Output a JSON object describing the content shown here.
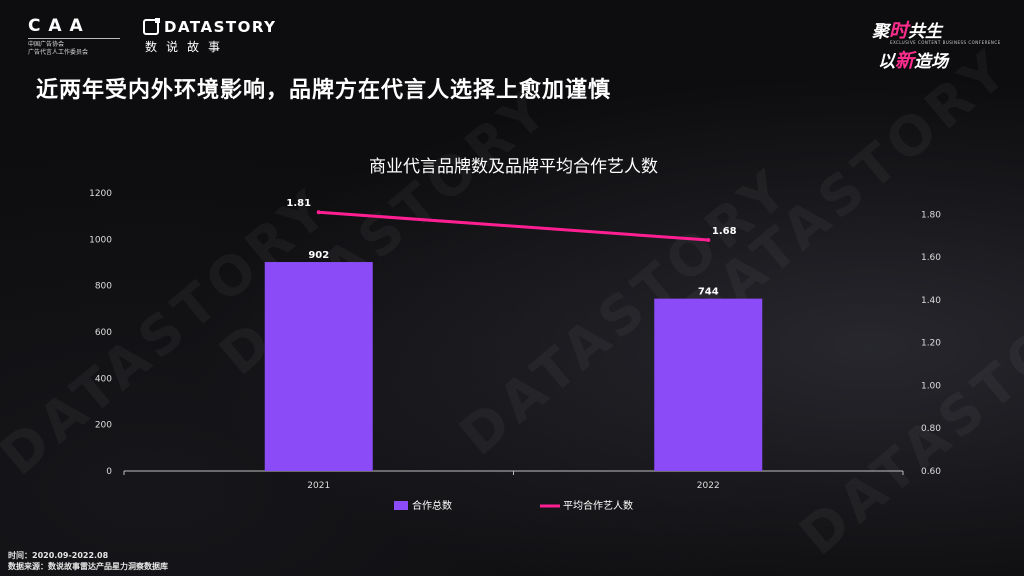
{
  "branding": {
    "caa_mark": "C A A",
    "caa_subtitle_1": "中国广告协会",
    "caa_subtitle_2": "广告代言人工作委员会",
    "datastory_en": "DATASTORY",
    "datastory_cn": "数说故事",
    "event_line1_a": "聚",
    "event_line1_b": "时",
    "event_line1_c": "共生",
    "event_tagline": "EXCLUSIVE CONTENT BUSINESS CONFERENCE",
    "event_line2_a": "以",
    "event_line2_b": "新",
    "event_line2_c": "造场",
    "watermark": "DATASTORY"
  },
  "page_title": "近两年受内外环境影响，品牌方在代言人选择上愈加谨慎",
  "footer": {
    "period": "时间：2020.09-2022.08",
    "source": "数据来源：数说故事雷达产品星力洞察数据库"
  },
  "colors": {
    "bar": "#8b4cf7",
    "line": "#ff1f93",
    "accent": "#ff2d8e"
  },
  "chart_data": {
    "type": "bar",
    "title": "商业代言品牌数及品牌平均合作艺人数",
    "categories": [
      "2021",
      "2022"
    ],
    "series": [
      {
        "name": "合作总数",
        "type": "bar",
        "axis": "left",
        "values": [
          902,
          744
        ],
        "labels": [
          "902",
          "744"
        ]
      },
      {
        "name": "平均合作艺人数",
        "type": "line",
        "axis": "right",
        "values": [
          1.81,
          1.68
        ],
        "labels": [
          "1.81",
          "1.68"
        ]
      }
    ],
    "y_left": {
      "min": 0,
      "max": 1200,
      "ticks": [
        "0",
        "200",
        "400",
        "600",
        "800",
        "1000",
        "1200"
      ]
    },
    "y_right": {
      "min": 0.6,
      "max": 1.9,
      "ticks": [
        "0.60",
        "0.80",
        "1.00",
        "1.20",
        "1.40",
        "1.60",
        "1.80"
      ]
    },
    "grid": false,
    "legend": "bottom"
  }
}
